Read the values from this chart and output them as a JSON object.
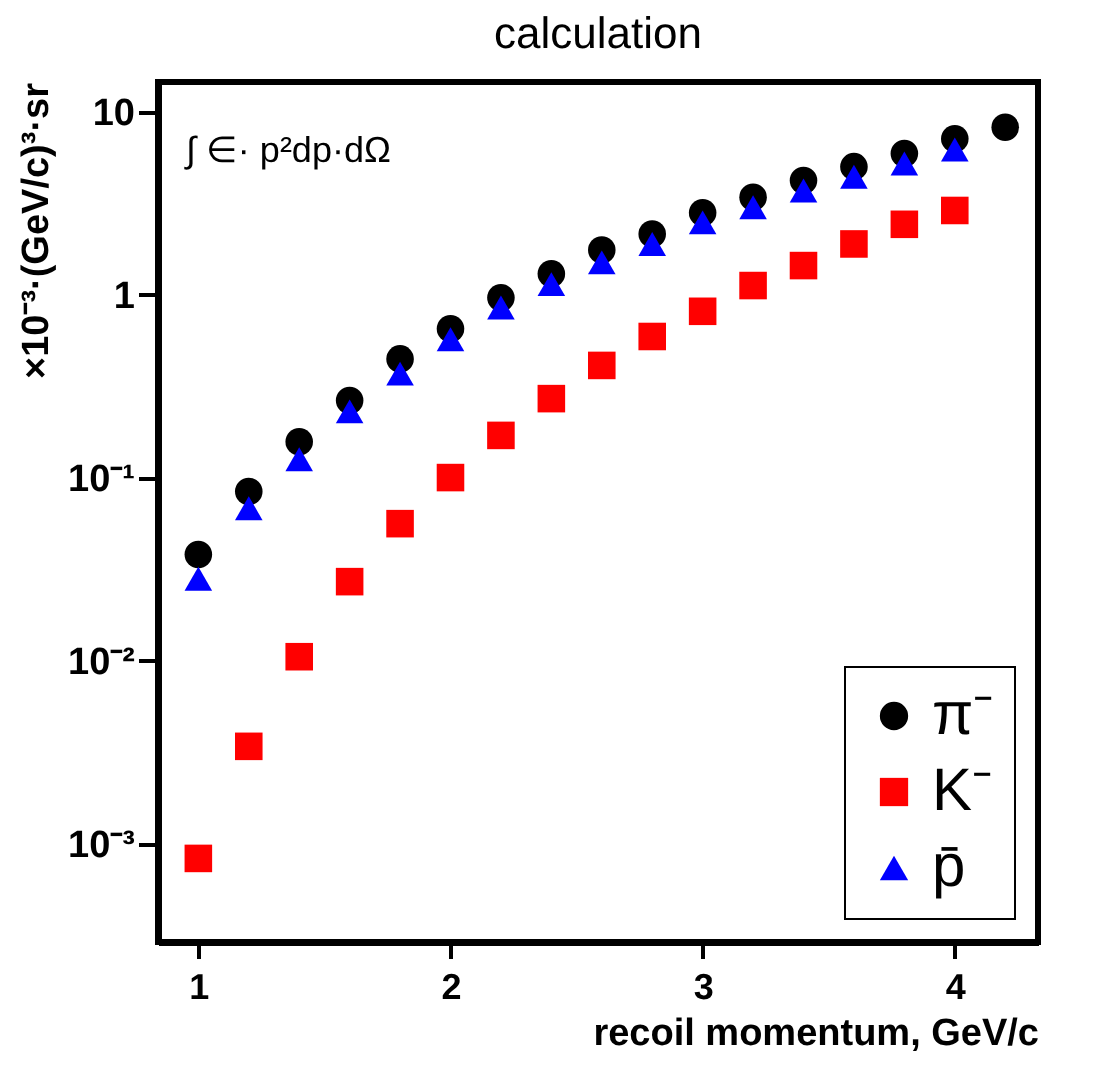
{
  "chart_data": {
    "type": "scatter",
    "title": "calculation",
    "xlabel": "recoil momentum, GeV/c",
    "ylabel": "×10⁻³·(GeV/c)³·sr",
    "annotations": [
      "∫ ∈· p²dp·dΩ"
    ],
    "x": [
      1.0,
      1.2,
      1.4,
      1.6,
      1.8,
      2.0,
      2.2,
      2.4,
      2.6,
      2.8,
      3.0,
      3.2,
      3.4,
      3.6,
      3.8,
      4.0,
      4.2
    ],
    "series": [
      {
        "name": "π⁻",
        "color": "#000000",
        "marker": "circle",
        "values": [
          0.038,
          0.084,
          0.157,
          0.264,
          0.445,
          0.65,
          0.96,
          1.3,
          1.75,
          2.14,
          2.8,
          3.4,
          4.2,
          5.0,
          5.9,
          7.1,
          8.2
        ]
      },
      {
        "name": "K⁻",
        "color": "#ff0000",
        "marker": "square",
        "values": [
          0.00083,
          0.0034,
          0.0105,
          0.027,
          0.056,
          0.1,
          0.17,
          0.27,
          0.41,
          0.59,
          0.81,
          1.12,
          1.44,
          1.89,
          2.42,
          2.88,
          null
        ]
      },
      {
        "name": "p̄",
        "color": "#0000ff",
        "marker": "triangle",
        "values": [
          0.028,
          0.068,
          0.126,
          0.23,
          0.37,
          0.57,
          0.85,
          1.14,
          1.5,
          1.89,
          2.48,
          3.0,
          3.7,
          4.4,
          5.2,
          6.2,
          null
        ]
      }
    ],
    "log": "y",
    "xlim": [
      0.84,
      4.33
    ],
    "xticks": [
      1,
      2,
      3,
      4
    ],
    "ylim": [
      0.00029,
      14.5
    ],
    "yticks": [
      {
        "value": 0.001,
        "label": "10⁻³"
      },
      {
        "value": 0.01,
        "label": "10⁻²"
      },
      {
        "value": 0.1,
        "label": "10⁻¹"
      },
      1,
      10
    ],
    "legend": "bottom right",
    "grid": false
  }
}
